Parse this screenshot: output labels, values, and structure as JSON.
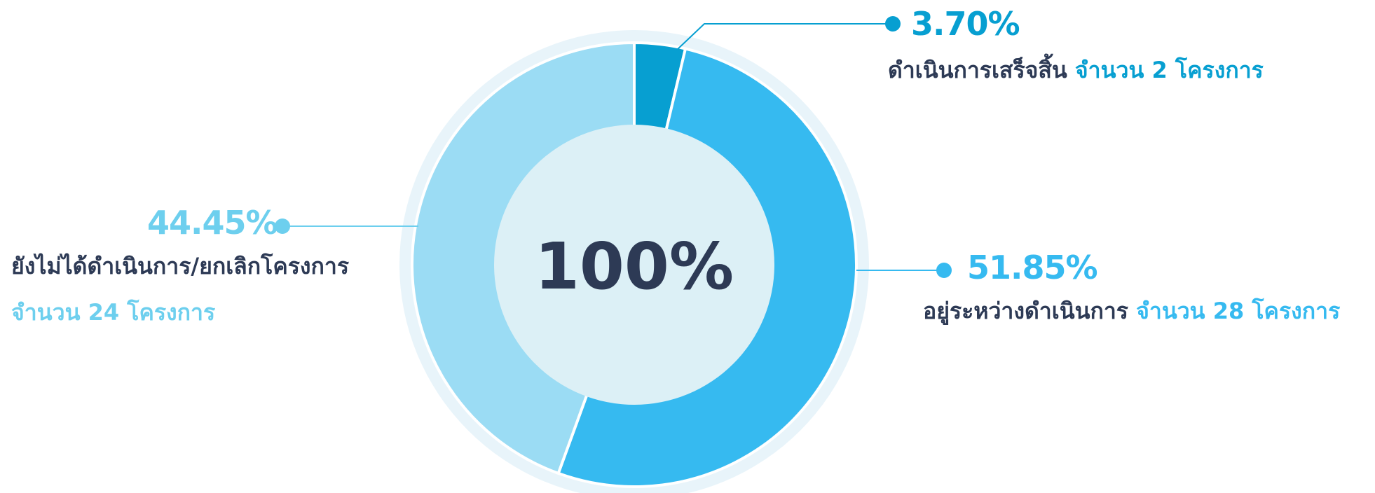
{
  "chart_data": {
    "type": "pie",
    "center_label": "100%",
    "slices": [
      {
        "percent_label": "3.70%",
        "value": 3.7,
        "status": "ดำเนินการเสร็จสิ้น",
        "count_label": "จำนวน 2 โครงการ",
        "color": "#079fd1",
        "text_color": "#079fd1"
      },
      {
        "percent_label": "51.85%",
        "value": 51.85,
        "status": "อยู่ระหว่างดำเนินการ",
        "count_label": "จำนวน 28 โครงการ",
        "color": "#36baf0",
        "text_color": "#36baf0"
      },
      {
        "percent_label": "44.45%",
        "value": 44.45,
        "status": "ยังไม่ได้ดำเนินการ/ยกเลิกโครงการ",
        "count_label": "จำนวน 24 โครงการ",
        "color": "#9bdcf4",
        "text_color": "#6dcfee"
      }
    ],
    "colors": {
      "outer_ring": "#e8f4fa",
      "inner_disc": "#dcf0f6",
      "center_text": "#2d3a55",
      "dark_text": "#2d3a55"
    }
  }
}
